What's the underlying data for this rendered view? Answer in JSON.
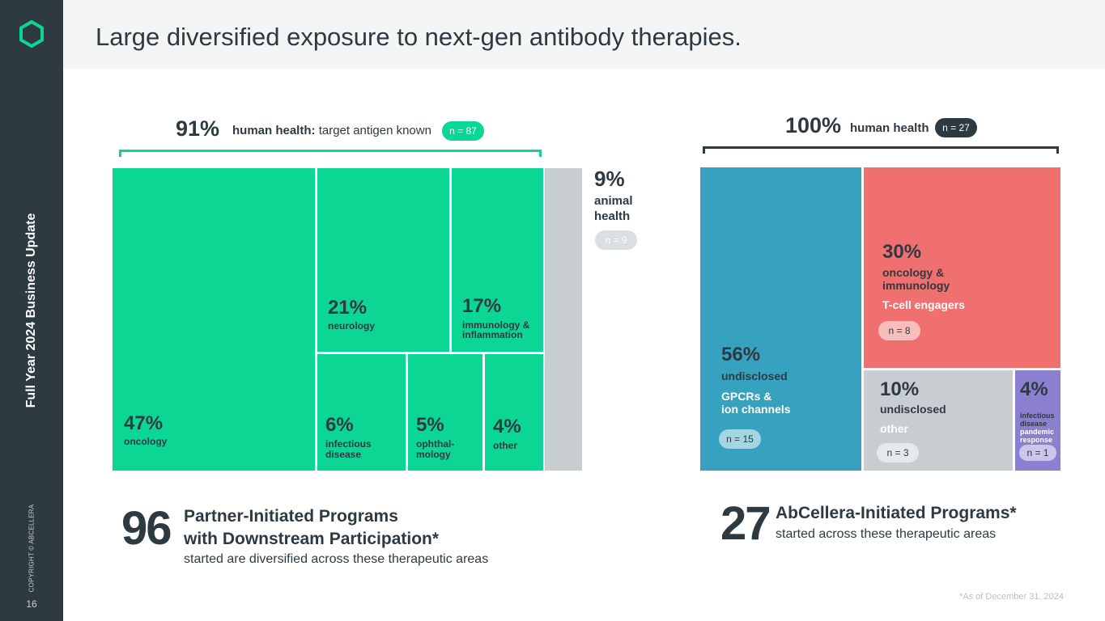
{
  "sidebar": {
    "deck_title": "Full Year 2024 Business Update",
    "copyright": "COPYRIGHT © ABCELLERA",
    "page_number": "16",
    "logo_icon": "hexagon-logo-icon",
    "color": "#2e3a42"
  },
  "header": {
    "title": "Large diversified exposure to next-gen antibody therapies."
  },
  "colors": {
    "green": "#0bd694",
    "gray": "#c8cdd1",
    "teal": "#36a2bf",
    "coral": "#f07070",
    "lightgray": "#c8cdd1",
    "purple": "#8b7fcf",
    "dark": "#2e3a42"
  },
  "chart_data": [
    {
      "type": "treemap",
      "group": {
        "percent": "91%",
        "label_bold": "human health:",
        "label_rest": "target antigen known",
        "count": "n = 87"
      },
      "side": {
        "percent": "9%",
        "label_line1": "animal",
        "label_line2": "health",
        "count": "n = 9",
        "value": 9
      },
      "cells": [
        {
          "id": "oncology",
          "value": 47,
          "percent": "47%",
          "label": [
            "oncology"
          ]
        },
        {
          "id": "neurology",
          "value": 21,
          "percent": "21%",
          "label": [
            "neurology"
          ]
        },
        {
          "id": "immunology",
          "value": 17,
          "percent": "17%",
          "label": [
            "immunology &",
            "inflammation"
          ]
        },
        {
          "id": "infectious",
          "value": 6,
          "percent": "6%",
          "label": [
            "infectious",
            "disease"
          ]
        },
        {
          "id": "ophthalmology",
          "value": 5,
          "percent": "5%",
          "label": [
            "ophthal-",
            "mology"
          ]
        },
        {
          "id": "other",
          "value": 4,
          "percent": "4%",
          "label": [
            "other"
          ]
        }
      ],
      "summary": {
        "number": "96",
        "title_line1": "Partner-Initiated Programs",
        "title_line2": "with Downstream Participation*",
        "subtitle": "started are diversified across these therapeutic areas"
      }
    },
    {
      "type": "treemap",
      "group": {
        "percent": "100%",
        "label_bold": "human health",
        "count": "n = 27"
      },
      "cells": [
        {
          "id": "gpcr",
          "value": 56,
          "percent": "56%",
          "label": [
            "undisclosed"
          ],
          "sub": [
            "GPCRs &",
            "ion channels"
          ],
          "count": "n = 15"
        },
        {
          "id": "tce",
          "value": 30,
          "percent": "30%",
          "label": [
            "oncology &",
            "immunology"
          ],
          "sub": [
            "T-cell engagers"
          ],
          "count": "n = 8"
        },
        {
          "id": "other",
          "value": 10,
          "percent": "10%",
          "label": [
            "undisclosed"
          ],
          "sub": [
            "other"
          ],
          "count": "n = 3"
        },
        {
          "id": "pandemic",
          "value": 4,
          "percent": "4%",
          "label": [
            "infectious",
            "disease"
          ],
          "sub": [
            "pandemic",
            "response"
          ],
          "count": "n = 1"
        }
      ],
      "summary": {
        "number": "27",
        "title_line1": "AbCellera-Initiated Programs*",
        "subtitle": "started across these therapeutic areas"
      }
    }
  ],
  "footnote": "*As of December 31, 2024"
}
